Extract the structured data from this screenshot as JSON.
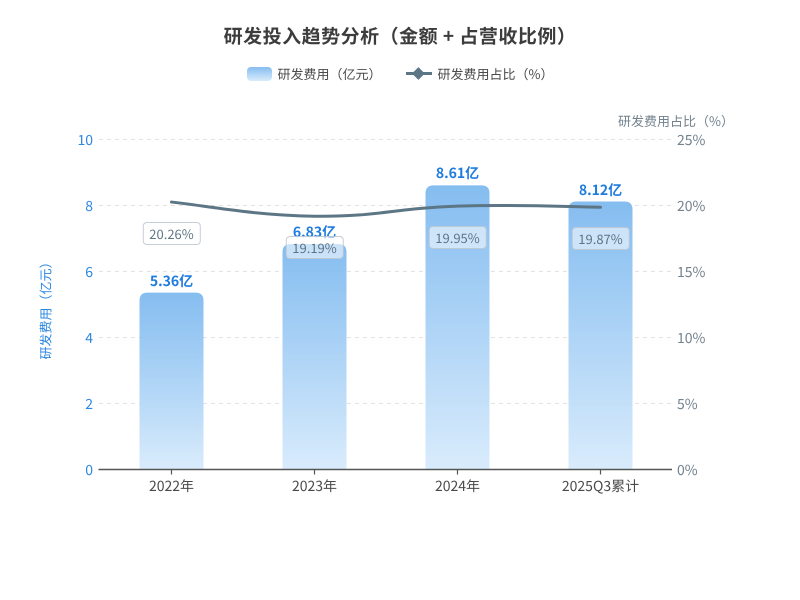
{
  "title": "研发投入趋势分析（金额 + 占营收比例）",
  "legend": {
    "bar": {
      "label": "研发费用（亿元）",
      "marker": "rounded-gradient-swatch"
    },
    "line": {
      "label": "研发费用占比（%）",
      "marker": "line-with-diamond"
    }
  },
  "chart_data": {
    "type": "bar",
    "title": "研发投入趋势分析（金额 + 占营收比例）",
    "categories": [
      "2022年",
      "2023年",
      "2024年",
      "2025Q3累计"
    ],
    "series": [
      {
        "name": "研发费用（亿元）",
        "type": "bar",
        "values": [
          5.36,
          6.83,
          8.61,
          8.12
        ],
        "labels": [
          "5.36亿",
          "6.83亿",
          "8.61亿",
          "8.12亿"
        ],
        "axis": "left"
      },
      {
        "name": "研发费用占比（%）",
        "type": "line",
        "values": [
          20.26,
          19.19,
          19.95,
          19.87
        ],
        "labels": [
          "20.26%",
          "19.19%",
          "19.95%",
          "19.87%"
        ],
        "axis": "right"
      }
    ],
    "ylabel_left": "研发费用（亿元）",
    "ylabel_right": "研发费用占比（%）",
    "ylim_left": [
      0,
      10
    ],
    "yticks_left": [
      "0",
      "2",
      "4",
      "6",
      "8",
      "10"
    ],
    "ylim_right": [
      0,
      25
    ],
    "yticks_right": [
      "0%",
      "5%",
      "10%",
      "15%",
      "20%",
      "25%"
    ],
    "grid": true,
    "grid_style": "dashed",
    "legend_position": "top",
    "xlabel": "",
    "smooth_line": true
  },
  "colors": {
    "title_text": "#3c3c3c",
    "legend_text": "#4a4a4a",
    "bar_gradient_top": "#85bdf0",
    "bar_gradient_bottom": "#d9ecfc",
    "line": "#5c7685",
    "value_label_text": "#1e7ce0",
    "left_axis_text": "#2b87e2",
    "right_axis_text": "#72828e",
    "pct_label_text": "#5e7584",
    "x_axis_text": "#4a4a4a",
    "grid_line": "#e2e2e2",
    "axis_line": "#555555"
  }
}
